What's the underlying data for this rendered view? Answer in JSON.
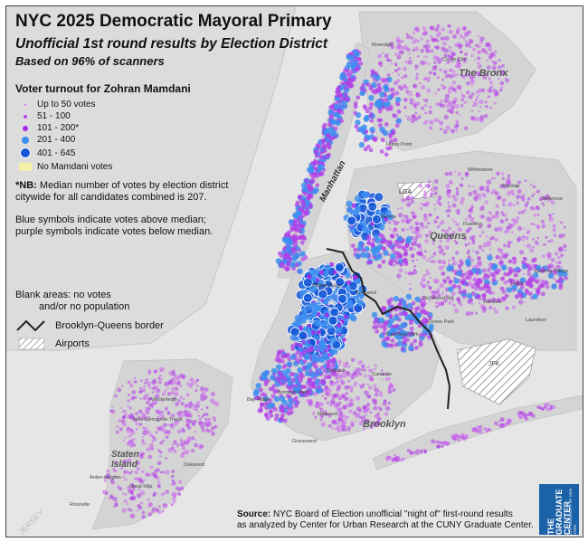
{
  "title": "NYC 2025 Democratic Mayoral Primary",
  "subtitle": "Unofficial 1st round results by Election District",
  "subtitle2": "Based on 96% of scanners",
  "legend": {
    "title": "Voter turnout for Zohran Mamdani",
    "items": [
      {
        "label": "Up to 50 votes",
        "color": "#cc66ee",
        "size": 2
      },
      {
        "label": "51 - 100",
        "color": "#bb44ee",
        "size": 4
      },
      {
        "label": "101 - 200*",
        "color": "#a828e8",
        "size": 6
      },
      {
        "label": "201 - 400",
        "color": "#3d8ef0",
        "size": 8
      },
      {
        "label": "401 - 645",
        "color": "#1557d6",
        "size": 10
      }
    ],
    "no_votes": {
      "label": "No Mamdani votes",
      "color": "#f3f0a6"
    }
  },
  "notes": {
    "nb_bold": "*NB:",
    "nb_text": " Median number of votes by election district citywide for all candidates combined is 207.",
    "blue_text": "Blue symbols indicate votes above median; purple symbols indicate votes below median."
  },
  "blank_areas": {
    "line1": "Blank areas: no votes",
    "line2": "and/or no population"
  },
  "border_label": "Brooklyn-Queens border",
  "airports_label": "Airports",
  "source": {
    "bold": "Source:",
    "line1": " NYC Board of Election unofficial \"night of\" first-round results",
    "line2": "as analyzed by Center for Urban Research at the CUNY Graduate Center."
  },
  "logo": {
    "main": "THE GRADUATE CENTER",
    "sub": "CITY UNIVERSITY OF NEW YORK"
  },
  "boroughs": [
    "The Bronx",
    "Manhattan",
    "Queens",
    "Brooklyn",
    "Staten Island",
    "JFK",
    "LGA",
    "JERSEY"
  ],
  "places": [
    "Hunts Point",
    "Astoria",
    "Bellerose",
    "Whitestone",
    "Bayside",
    "Flushing",
    "Jamaica",
    "Hollis",
    "Queens Village",
    "Laurelton",
    "Canarsie",
    "Flatbush",
    "Bushwick",
    "Williamsburg",
    "Gravesend",
    "Midwood",
    "Borough Park",
    "Bay Ridge",
    "Westerleigh",
    "New Springville-Travis",
    "Oakwood",
    "Great Kills",
    "Arden Heights",
    "Rossville",
    "Richmond Hill",
    "Ozone Park",
    "East New York",
    "Co-op City",
    "Riverdale"
  ],
  "colors": {
    "purple": "#b23ee8",
    "blue": "#2f78e6",
    "water": "#e6e6e6",
    "land": "#d6d6d6"
  }
}
